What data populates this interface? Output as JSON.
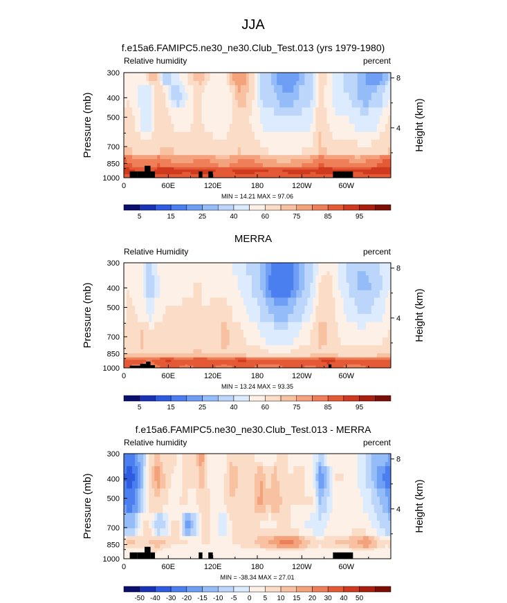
{
  "figure": {
    "title": "JJA"
  },
  "chart_data": [
    {
      "type": "heatmap",
      "title": "f.e15a6.FAMIPC5.ne30_ne30.Club_Test.013 (yrs 1979-1980)",
      "left_label": "Relative humidity",
      "right_label": "percent",
      "ylabel": "Pressure (mb)",
      "ylabel_right": "Height (km)",
      "x_ticks": [
        "0",
        "60E",
        "120E",
        "180",
        "120W",
        "60W"
      ],
      "x_tick_values": [
        0,
        60,
        120,
        180,
        240,
        300
      ],
      "xlim": [
        0,
        360
      ],
      "y_ticks": [
        "300",
        "400",
        "500",
        "700",
        "850",
        "1000"
      ],
      "y_tick_values": [
        300,
        400,
        500,
        700,
        850,
        1000
      ],
      "ylim": [
        300,
        1000
      ],
      "y_scale": "log",
      "height_ticks": [
        "8",
        "4"
      ],
      "height_tick_values": [
        8,
        4
      ],
      "stats": "MIN =  14.21  MAX =  97.06",
      "min": 14.21,
      "max": 97.06,
      "colorbar_labels": [
        "5",
        "15",
        "25",
        "40",
        "60",
        "75",
        "85",
        "95"
      ],
      "colorbar_levels": [
        0,
        5,
        10,
        15,
        20,
        25,
        30,
        40,
        50,
        60,
        70,
        75,
        80,
        85,
        90,
        95,
        100
      ],
      "colorbar_label_positions": [
        1,
        3,
        5,
        7,
        9,
        11,
        13,
        15
      ],
      "field": [
        [
          60,
          58,
          52,
          70,
          70,
          30,
          40,
          50,
          60,
          70,
          75,
          60,
          55,
          55,
          75,
          80,
          75,
          60,
          40,
          35,
          25,
          20,
          20,
          25,
          30,
          40,
          65,
          60,
          45,
          40,
          35,
          30,
          25,
          20,
          22,
          30
        ],
        [
          60,
          55,
          40,
          42,
          70,
          65,
          40,
          35,
          50,
          60,
          60,
          55,
          50,
          50,
          60,
          75,
          72,
          60,
          40,
          35,
          30,
          25,
          25,
          30,
          35,
          40,
          68,
          55,
          45,
          40,
          40,
          30,
          25,
          30,
          35,
          45
        ],
        [
          65,
          60,
          45,
          45,
          68,
          68,
          60,
          55,
          55,
          62,
          60,
          55,
          55,
          55,
          60,
          68,
          65,
          55,
          50,
          45,
          40,
          40,
          40,
          40,
          45,
          50,
          70,
          60,
          50,
          50,
          50,
          45,
          40,
          45,
          50,
          60
        ],
        [
          68,
          65,
          62,
          62,
          66,
          68,
          68,
          65,
          65,
          66,
          65,
          62,
          60,
          60,
          64,
          68,
          66,
          62,
          60,
          56,
          55,
          55,
          55,
          55,
          56,
          60,
          72,
          65,
          60,
          60,
          60,
          60,
          58,
          60,
          62,
          66
        ],
        [
          85,
          82,
          80,
          80,
          84,
          82,
          80,
          78,
          78,
          80,
          82,
          80,
          78,
          76,
          78,
          80,
          82,
          80,
          78,
          76,
          75,
          74,
          75,
          76,
          78,
          80,
          84,
          82,
          80,
          80,
          80,
          78,
          80,
          82,
          84,
          86
        ],
        [
          92,
          90,
          88,
          88,
          92,
          93,
          93,
          92,
          90,
          91,
          92,
          92,
          90,
          89,
          90,
          91,
          92,
          91,
          90,
          90,
          89,
          90,
          91,
          92,
          92,
          90,
          92,
          93,
          92,
          91,
          90,
          90,
          91,
          92,
          93,
          92
        ],
        [
          88,
          86,
          85,
          86,
          88,
          88,
          88,
          87,
          86,
          88,
          88,
          87,
          86,
          86,
          87,
          88,
          88,
          87,
          86,
          86,
          86,
          87,
          88,
          88,
          87,
          86,
          88,
          89,
          88,
          87,
          86,
          86,
          87,
          88,
          88,
          88
        ]
      ],
      "field_pressures": [
        300,
        400,
        500,
        700,
        850,
        925,
        1000
      ],
      "topography": [
        {
          "lon1": 8,
          "lon2": 18,
          "p": 930
        },
        {
          "lon1": 18,
          "lon2": 28,
          "p": 930
        },
        {
          "lon1": 28,
          "lon2": 36,
          "p": 872
        },
        {
          "lon1": 36,
          "lon2": 42,
          "p": 930
        },
        {
          "lon1": 101,
          "lon2": 106,
          "p": 930
        },
        {
          "lon1": 114,
          "lon2": 120,
          "p": 930
        },
        {
          "lon1": 282,
          "lon2": 309,
          "p": 930
        }
      ]
    },
    {
      "type": "heatmap",
      "title": "MERRA",
      "left_label": "Relative Humidity",
      "right_label": "percent",
      "ylabel": "Pressure (mb)",
      "ylabel_right": "Height (km)",
      "x_ticks": [
        "0",
        "60E",
        "120E",
        "180",
        "120W",
        "60W"
      ],
      "x_tick_values": [
        0,
        60,
        120,
        180,
        240,
        300
      ],
      "xlim": [
        0,
        360
      ],
      "y_ticks": [
        "300",
        "400",
        "500",
        "700",
        "850",
        "1000"
      ],
      "y_tick_values": [
        300,
        400,
        500,
        700,
        850,
        1000
      ],
      "ylim": [
        300,
        1000
      ],
      "y_scale": "log",
      "height_ticks": [
        "8",
        "4"
      ],
      "height_tick_values": [
        8,
        4
      ],
      "stats": "MIN =  13.24  MAX =  93.35",
      "min": 13.24,
      "max": 93.35,
      "colorbar_labels": [
        "5",
        "15",
        "25",
        "40",
        "60",
        "75",
        "85",
        "95"
      ],
      "colorbar_levels": [
        0,
        5,
        10,
        15,
        20,
        25,
        30,
        40,
        50,
        60,
        70,
        75,
        80,
        85,
        90,
        95,
        100
      ],
      "colorbar_label_positions": [
        1,
        3,
        5,
        7,
        9,
        11,
        13,
        15
      ],
      "field": [
        [
          60,
          58,
          50,
          35,
          50,
          55,
          55,
          55,
          55,
          58,
          58,
          55,
          55,
          52,
          50,
          48,
          40,
          35,
          30,
          22,
          18,
          15,
          18,
          25,
          30,
          40,
          55,
          60,
          55,
          45,
          35,
          30,
          30,
          35,
          40,
          45
        ],
        [
          60,
          58,
          50,
          30,
          45,
          55,
          58,
          58,
          58,
          60,
          60,
          58,
          58,
          56,
          52,
          50,
          45,
          38,
          30,
          20,
          15,
          15,
          18,
          25,
          32,
          42,
          62,
          65,
          55,
          45,
          38,
          30,
          28,
          30,
          38,
          45
        ],
        [
          62,
          60,
          55,
          45,
          55,
          60,
          60,
          60,
          62,
          62,
          60,
          60,
          62,
          62,
          60,
          55,
          50,
          45,
          38,
          30,
          25,
          25,
          28,
          35,
          40,
          50,
          68,
          70,
          60,
          52,
          45,
          40,
          38,
          40,
          45,
          52
        ],
        [
          62,
          62,
          72,
          60,
          66,
          64,
          62,
          62,
          66,
          70,
          66,
          62,
          66,
          74,
          68,
          62,
          58,
          55,
          50,
          45,
          42,
          42,
          45,
          50,
          55,
          62,
          72,
          70,
          62,
          58,
          55,
          52,
          52,
          55,
          58,
          60
        ],
        [
          70,
          68,
          70,
          68,
          70,
          68,
          66,
          66,
          68,
          70,
          70,
          68,
          68,
          70,
          68,
          66,
          65,
          64,
          62,
          60,
          58,
          58,
          60,
          62,
          64,
          66,
          70,
          68,
          66,
          64,
          62,
          62,
          62,
          64,
          66,
          68
        ],
        [
          88,
          86,
          86,
          84,
          88,
          90,
          90,
          88,
          88,
          89,
          90,
          89,
          88,
          88,
          89,
          90,
          90,
          88,
          86,
          86,
          86,
          88,
          88,
          89,
          90,
          88,
          90,
          91,
          90,
          88,
          86,
          86,
          88,
          89,
          90,
          88
        ],
        [
          86,
          84,
          82,
          80,
          84,
          86,
          86,
          85,
          84,
          85,
          86,
          86,
          85,
          84,
          85,
          86,
          86,
          85,
          84,
          84,
          84,
          85,
          86,
          86,
          85,
          84,
          86,
          87,
          86,
          85,
          84,
          84,
          85,
          86,
          86,
          86
        ]
      ],
      "field_pressures": [
        300,
        400,
        500,
        700,
        850,
        925,
        1000
      ],
      "topography": [
        {
          "lon1": 8,
          "lon2": 22,
          "p": 975
        },
        {
          "lon1": 22,
          "lon2": 30,
          "p": 955
        },
        {
          "lon1": 30,
          "lon2": 36,
          "p": 930
        },
        {
          "lon1": 36,
          "lon2": 42,
          "p": 970
        },
        {
          "lon1": 276,
          "lon2": 280,
          "p": 960
        }
      ]
    },
    {
      "type": "heatmap",
      "title": "f.e15a6.FAMIPC5.ne30_ne30.Club_Test.013 - MERRA",
      "left_label": "Relative humidity",
      "right_label": "percent",
      "ylabel": "Pressure (mb)",
      "ylabel_right": "Height (km)",
      "x_ticks": [
        "0",
        "60E",
        "120E",
        "180",
        "120W",
        "60W"
      ],
      "x_tick_values": [
        0,
        60,
        120,
        180,
        240,
        300
      ],
      "xlim": [
        0,
        360
      ],
      "y_ticks": [
        "300",
        "400",
        "500",
        "700",
        "850",
        "1000"
      ],
      "y_tick_values": [
        300,
        400,
        500,
        700,
        850,
        1000
      ],
      "ylim": [
        300,
        1000
      ],
      "y_scale": "log",
      "height_ticks": [
        "8",
        "4"
      ],
      "height_tick_values": [
        8,
        4
      ],
      "stats": "MIN = -38.34  MAX =  27.01",
      "min": -38.34,
      "max": 27.01,
      "colorbar_labels": [
        "-50",
        "-40",
        "-30",
        "-20",
        "-15",
        "-10",
        "-5",
        "0",
        "5",
        "10",
        "15",
        "20",
        "30",
        "40",
        "50"
      ],
      "colorbar_levels": [
        -60,
        -50,
        -40,
        -30,
        -20,
        -15,
        -10,
        -5,
        0,
        5,
        10,
        15,
        20,
        30,
        40,
        50,
        60
      ],
      "colorbar_label_positions": [
        1,
        2,
        3,
        4,
        5,
        6,
        7,
        8,
        9,
        10,
        11,
        12,
        13,
        14,
        15
      ],
      "field": [
        [
          -25,
          -20,
          -10,
          5,
          15,
          5,
          8,
          2,
          10,
          5,
          18,
          2,
          0,
          2,
          10,
          5,
          10,
          5,
          3,
          0,
          5,
          8,
          3,
          0,
          2,
          2,
          -10,
          3,
          5,
          3,
          2,
          0,
          -5,
          -10,
          -12,
          -15
        ],
        [
          -35,
          -30,
          -10,
          8,
          18,
          10,
          5,
          3,
          8,
          5,
          15,
          3,
          2,
          3,
          15,
          10,
          5,
          8,
          15,
          8,
          12,
          5,
          5,
          8,
          5,
          2,
          -20,
          -10,
          5,
          5,
          2,
          0,
          -5,
          -10,
          -18,
          -22
        ],
        [
          -25,
          -20,
          -8,
          5,
          10,
          8,
          3,
          5,
          5,
          3,
          10,
          5,
          3,
          5,
          10,
          8,
          8,
          10,
          18,
          10,
          15,
          8,
          5,
          5,
          5,
          5,
          -12,
          -5,
          3,
          5,
          3,
          3,
          -2,
          -5,
          -10,
          -15
        ],
        [
          -12,
          -10,
          5,
          5,
          -10,
          -8,
          5,
          5,
          -18,
          -10,
          5,
          5,
          2,
          -5,
          5,
          8,
          5,
          5,
          5,
          3,
          5,
          5,
          5,
          3,
          0,
          -2,
          -5,
          0,
          3,
          3,
          3,
          3,
          2,
          0,
          -5,
          -8
        ],
        [
          10,
          10,
          8,
          10,
          12,
          10,
          5,
          5,
          5,
          3,
          5,
          5,
          3,
          3,
          5,
          5,
          8,
          10,
          12,
          15,
          18,
          22,
          22,
          18,
          12,
          8,
          5,
          8,
          10,
          10,
          12,
          15,
          20,
          15,
          8,
          5
        ],
        [
          3,
          3,
          3,
          5,
          5,
          3,
          2,
          3,
          2,
          2,
          2,
          3,
          3,
          3,
          3,
          3,
          3,
          3,
          2,
          3,
          3,
          3,
          3,
          3,
          3,
          3,
          3,
          3,
          3,
          3,
          3,
          3,
          3,
          3,
          3,
          3
        ],
        [
          3,
          3,
          3,
          3,
          3,
          3,
          3,
          3,
          3,
          3,
          3,
          3,
          3,
          3,
          3,
          3,
          3,
          3,
          3,
          3,
          3,
          3,
          3,
          3,
          3,
          3,
          3,
          3,
          3,
          3,
          3,
          3,
          3,
          3,
          3,
          3
        ]
      ],
      "field_pressures": [
        300,
        400,
        500,
        700,
        850,
        925,
        1000
      ],
      "topography": [
        {
          "lon1": 8,
          "lon2": 18,
          "p": 930
        },
        {
          "lon1": 18,
          "lon2": 28,
          "p": 930
        },
        {
          "lon1": 28,
          "lon2": 36,
          "p": 872
        },
        {
          "lon1": 36,
          "lon2": 42,
          "p": 930
        },
        {
          "lon1": 101,
          "lon2": 106,
          "p": 930
        },
        {
          "lon1": 114,
          "lon2": 120,
          "p": 930
        },
        {
          "lon1": 282,
          "lon2": 309,
          "p": 930
        }
      ]
    }
  ],
  "colors": {
    "absolute_palette": [
      "#0a0f6e",
      "#1a33b5",
      "#2e5be0",
      "#4b7ff0",
      "#6f9ef5",
      "#94bcf8",
      "#bcd6fb",
      "#dcebfd",
      "#fdf0e6",
      "#fbdcc6",
      "#f8c2a2",
      "#f4a27c",
      "#ef7f59",
      "#e55a36",
      "#cf3a1e",
      "#a81e0f",
      "#7d0d07"
    ],
    "diff_palette": [
      "#0a0f6e",
      "#1a33b5",
      "#2e5be0",
      "#4b7ff0",
      "#6f9ef5",
      "#94bcf8",
      "#bcd6fb",
      "#dcebfd",
      "#fdf0e6",
      "#fbdcc6",
      "#f8c2a2",
      "#f4a27c",
      "#ef7f59",
      "#e55a36",
      "#cf3a1e",
      "#a81e0f",
      "#7d0d07"
    ],
    "topography": "#000000"
  }
}
